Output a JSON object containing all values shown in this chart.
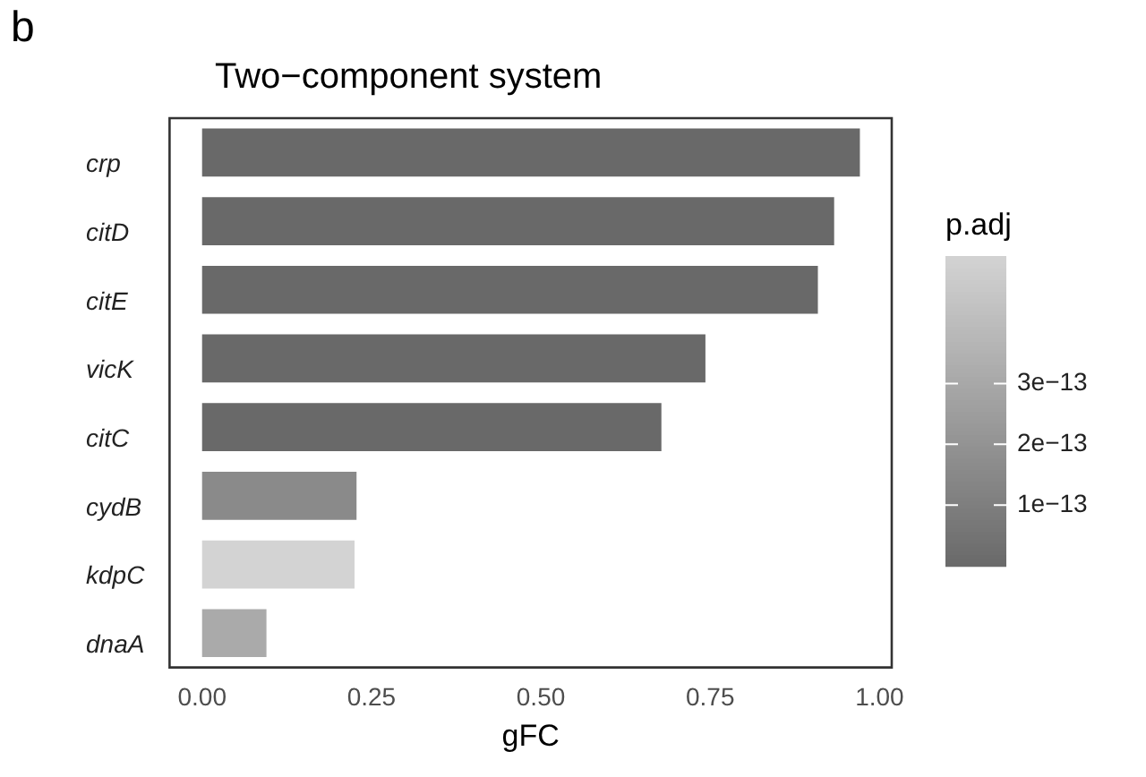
{
  "chart_data": {
    "type": "bar",
    "orientation": "horizontal",
    "title": "Two−component system",
    "xlabel": "gFC",
    "clabel": "p.adj",
    "annotations": [
      "b"
    ],
    "categories": [
      "crp",
      "citD",
      "citE",
      "vicK",
      "citC",
      "cydB",
      "kdpC",
      "dnaA"
    ],
    "values": [
      0.971,
      0.933,
      0.909,
      0.743,
      0.678,
      0.228,
      0.225,
      0.095
    ],
    "colors": [
      "#696969",
      "#696969",
      "#696969",
      "#696969",
      "#696969",
      "#8a8a8a",
      "#d3d3d3",
      "#aaaaaa"
    ],
    "clim": [
      0,
      5.1e-13
    ],
    "cticks": [
      {
        "value": 1e-13,
        "label": "1e−13"
      },
      {
        "value": 2e-13,
        "label": "2e−13"
      },
      {
        "value": 3e-13,
        "label": "3e−13"
      }
    ],
    "xlim": [
      -0.048,
      1.018
    ],
    "xticks": [
      {
        "value": 0,
        "label": "0.00"
      },
      {
        "value": 0.25,
        "label": "0.25"
      },
      {
        "value": 0.5,
        "label": "0.50"
      },
      {
        "value": 0.75,
        "label": "0.75"
      },
      {
        "value": 1,
        "label": "1.00"
      }
    ],
    "grid": false,
    "legend": false
  }
}
